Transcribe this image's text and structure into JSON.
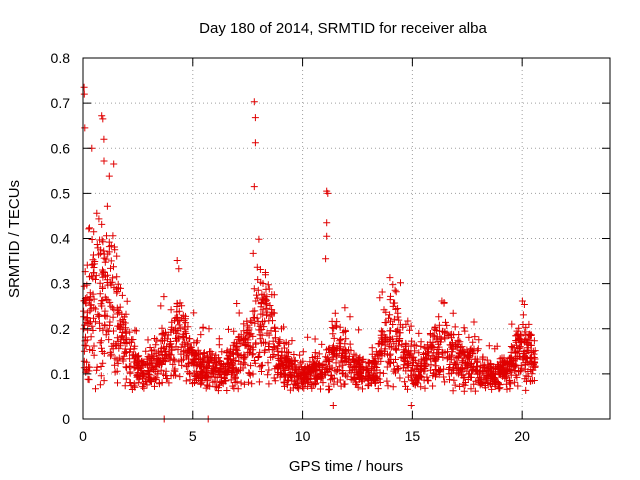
{
  "chart_data": {
    "type": "scatter",
    "title": "Day 180 of 2014, SRMTID for receiver alba",
    "xlabel": "GPS time / hours",
    "ylabel": "SRMTID / TECUs",
    "xlim": [
      0,
      24
    ],
    "ylim": [
      0,
      0.8
    ],
    "xticks": [
      0,
      5,
      10,
      15,
      20
    ],
    "yticks": [
      0,
      0.1,
      0.2,
      0.3,
      0.4,
      0.5,
      0.6,
      0.7,
      0.8
    ],
    "xtick_labels": [
      "0",
      "5",
      "10",
      "15",
      "20"
    ],
    "ytick_labels": [
      "0",
      "0.1",
      "0.2",
      "0.3",
      "0.4",
      "0.5",
      "0.6",
      "0.7",
      "0.8"
    ],
    "grid": true,
    "marker": "+",
    "color": "#e00000",
    "series": [
      {
        "name": "SRMTID",
        "x_range": [
          0,
          20.6
        ],
        "n_points": 2200,
        "typical_range": [
          0.05,
          0.2
        ],
        "envelope": [
          {
            "x": 0.0,
            "y": 0.2
          },
          {
            "x": 0.3,
            "y": 0.3
          },
          {
            "x": 0.8,
            "y": 0.32
          },
          {
            "x": 1.4,
            "y": 0.28
          },
          {
            "x": 2.0,
            "y": 0.17
          },
          {
            "x": 2.6,
            "y": 0.11
          },
          {
            "x": 3.5,
            "y": 0.14
          },
          {
            "x": 4.3,
            "y": 0.21
          },
          {
            "x": 4.7,
            "y": 0.17
          },
          {
            "x": 5.3,
            "y": 0.12
          },
          {
            "x": 6.5,
            "y": 0.12
          },
          {
            "x": 7.5,
            "y": 0.17
          },
          {
            "x": 8.0,
            "y": 0.27
          },
          {
            "x": 8.5,
            "y": 0.22
          },
          {
            "x": 9.0,
            "y": 0.13
          },
          {
            "x": 10.0,
            "y": 0.1
          },
          {
            "x": 11.0,
            "y": 0.12
          },
          {
            "x": 11.5,
            "y": 0.16
          },
          {
            "x": 12.5,
            "y": 0.12
          },
          {
            "x": 13.2,
            "y": 0.1
          },
          {
            "x": 13.9,
            "y": 0.22
          },
          {
            "x": 14.6,
            "y": 0.15
          },
          {
            "x": 15.3,
            "y": 0.1
          },
          {
            "x": 16.2,
            "y": 0.18
          },
          {
            "x": 17.0,
            "y": 0.15
          },
          {
            "x": 18.0,
            "y": 0.12
          },
          {
            "x": 18.7,
            "y": 0.1
          },
          {
            "x": 19.5,
            "y": 0.13
          },
          {
            "x": 20.0,
            "y": 0.17
          },
          {
            "x": 20.6,
            "y": 0.14
          }
        ],
        "notable_points": [
          {
            "x": 0.05,
            "y": 0.735
          },
          {
            "x": 0.06,
            "y": 0.72
          },
          {
            "x": 0.08,
            "y": 0.645
          },
          {
            "x": 0.85,
            "y": 0.672
          },
          {
            "x": 0.9,
            "y": 0.665
          },
          {
            "x": 0.95,
            "y": 0.62
          },
          {
            "x": 0.4,
            "y": 0.6
          },
          {
            "x": 1.4,
            "y": 0.565
          },
          {
            "x": 7.8,
            "y": 0.703
          },
          {
            "x": 7.85,
            "y": 0.668
          },
          {
            "x": 7.85,
            "y": 0.612
          },
          {
            "x": 7.8,
            "y": 0.515
          },
          {
            "x": 11.1,
            "y": 0.505
          },
          {
            "x": 11.15,
            "y": 0.5
          },
          {
            "x": 11.1,
            "y": 0.435
          },
          {
            "x": 11.1,
            "y": 0.405
          },
          {
            "x": 11.05,
            "y": 0.355
          },
          {
            "x": 3.7,
            "y": 0.0
          },
          {
            "x": 5.7,
            "y": 0.0
          },
          {
            "x": 14.95,
            "y": 0.03
          },
          {
            "x": 11.4,
            "y": 0.03
          }
        ]
      }
    ]
  }
}
